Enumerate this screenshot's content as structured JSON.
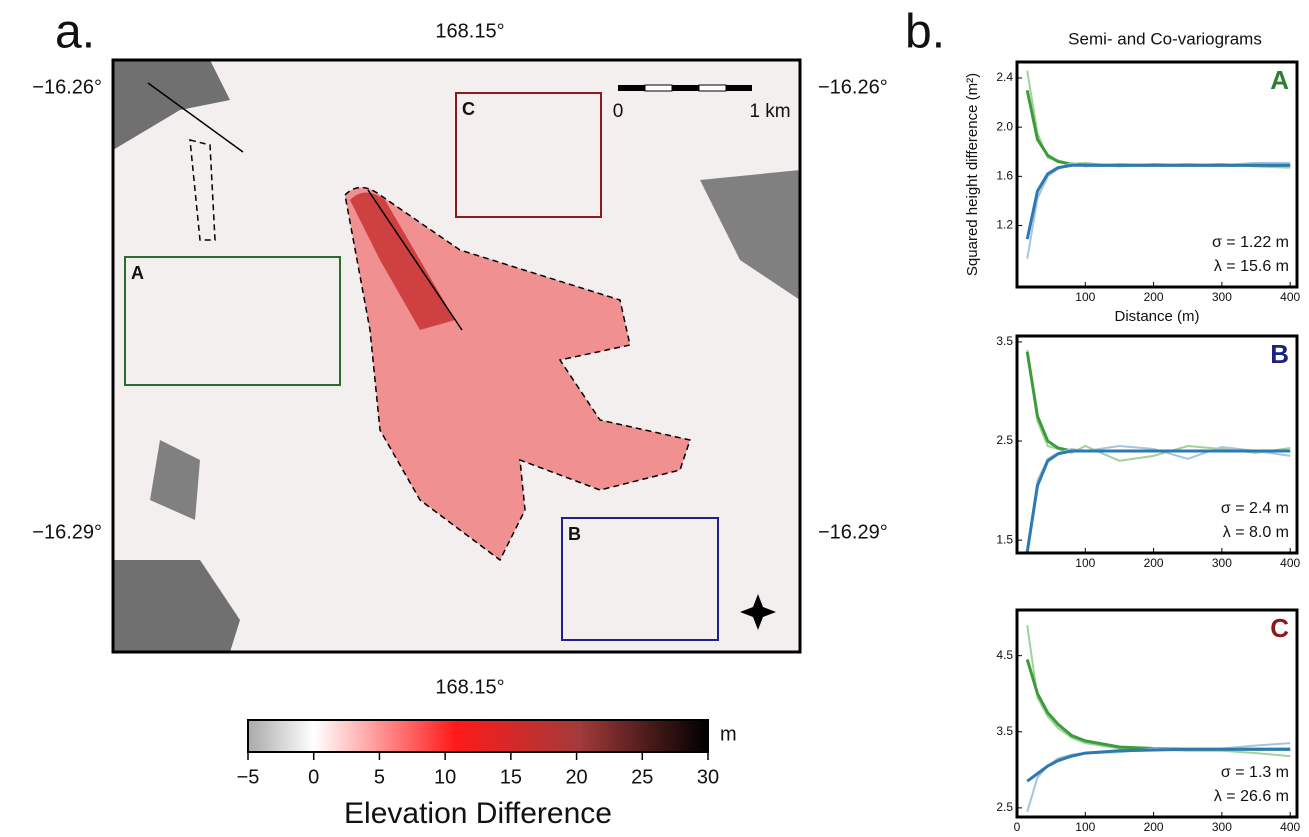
{
  "panel_labels": [
    "a.",
    "b."
  ],
  "map": {
    "lon_label": "168.15°",
    "lat_labels": [
      "−16.26°",
      "−16.29°"
    ],
    "boxes": [
      {
        "label": "A",
        "color": "#2e6b30"
      },
      {
        "label": "B",
        "color": "#23208a"
      },
      {
        "label": "C",
        "color": "#8b1a1a"
      }
    ],
    "scale_bar": [
      "0",
      "1 km"
    ],
    "colorbar": {
      "lim": [
        -5,
        30
      ],
      "ticks": [
        {
          "value": -5,
          "label": "−5"
        },
        0,
        5,
        10,
        15,
        20,
        25,
        30
      ],
      "unit": "m",
      "label": "Elevation Difference"
    }
  },
  "variogram_title": "Semi- and Co-variograms",
  "chart_data": [
    {
      "type": "line",
      "title": "A",
      "title_color": "#2e7d32",
      "ylabel": "Squared height difference (m²)",
      "xlabel": "Distance (m)",
      "x": [
        15,
        30,
        45,
        60,
        80,
        100,
        150,
        200,
        250,
        300,
        350,
        400
      ],
      "series": [
        {
          "color": "#9fd39a",
          "values": [
            2.46,
            1.95,
            1.75,
            1.73,
            1.7,
            1.71,
            1.68,
            1.7,
            1.69,
            1.7,
            1.68,
            1.67
          ]
        },
        {
          "color": "#3c9c3c",
          "values": [
            2.3,
            1.9,
            1.77,
            1.72,
            1.7,
            1.69,
            1.69,
            1.69,
            1.69,
            1.69,
            1.69,
            1.69
          ]
        },
        {
          "color": "#a3c6de",
          "values": [
            0.93,
            1.42,
            1.6,
            1.66,
            1.71,
            1.68,
            1.7,
            1.69,
            1.7,
            1.69,
            1.71,
            1.71
          ]
        },
        {
          "color": "#2f78b0",
          "values": [
            1.09,
            1.48,
            1.62,
            1.67,
            1.69,
            1.69,
            1.69,
            1.69,
            1.69,
            1.69,
            1.69,
            1.69
          ]
        }
      ],
      "xlim": [
        0,
        410
      ],
      "ylim": [
        0.7,
        2.53
      ],
      "xticks": [
        100,
        200,
        300,
        400
      ],
      "yticks": [
        1.2,
        1.6,
        {
          "value": 2,
          "label": "2.0"
        },
        2.4
      ],
      "annotations": [
        "σ = 1.22 m",
        "λ = 15.6 m"
      ]
    },
    {
      "type": "line",
      "title": "B",
      "title_color": "#1a237e",
      "x": [
        15,
        30,
        45,
        60,
        80,
        100,
        150,
        200,
        250,
        300,
        350,
        400
      ],
      "series": [
        {
          "color": "#9fd39a",
          "values": [
            3.42,
            2.7,
            2.45,
            2.42,
            2.38,
            2.45,
            2.3,
            2.35,
            2.45,
            2.42,
            2.38,
            2.43
          ]
        },
        {
          "color": "#3c9c3c",
          "values": [
            3.4,
            2.75,
            2.5,
            2.43,
            2.4,
            2.4,
            2.4,
            2.4,
            2.4,
            2.4,
            2.4,
            2.4
          ]
        },
        {
          "color": "#a3c6de",
          "values": [
            1.4,
            2.1,
            2.32,
            2.38,
            2.42,
            2.4,
            2.45,
            2.42,
            2.32,
            2.44,
            2.4,
            2.35
          ]
        },
        {
          "color": "#2f78b0",
          "values": [
            1.38,
            2.05,
            2.3,
            2.37,
            2.4,
            2.4,
            2.4,
            2.4,
            2.4,
            2.4,
            2.4,
            2.4
          ]
        }
      ],
      "xlim": [
        0,
        410
      ],
      "ylim": [
        1.37,
        3.56
      ],
      "xticks": [
        100,
        200,
        300,
        400
      ],
      "yticks": [
        1.5,
        2.5,
        3.5
      ],
      "annotations": [
        "σ = 2.4 m",
        "λ = 8.0 m"
      ]
    },
    {
      "type": "line",
      "title": "C",
      "title_color": "#8b1a1a",
      "x": [
        15,
        30,
        45,
        60,
        80,
        100,
        150,
        200,
        250,
        300,
        350,
        400
      ],
      "series": [
        {
          "color": "#9fd39a",
          "values": [
            4.9,
            3.95,
            3.7,
            3.55,
            3.42,
            3.35,
            3.28,
            3.27,
            3.25,
            3.25,
            3.22,
            3.18
          ]
        },
        {
          "color": "#3c9c3c",
          "values": [
            4.45,
            4.0,
            3.75,
            3.6,
            3.45,
            3.38,
            3.3,
            3.28,
            3.27,
            3.27,
            3.27,
            3.27
          ]
        },
        {
          "color": "#a3c6de",
          "values": [
            2.45,
            2.9,
            3.05,
            3.15,
            3.2,
            3.22,
            3.23,
            3.28,
            3.27,
            3.28,
            3.32,
            3.35
          ]
        },
        {
          "color": "#2f78b0",
          "values": [
            2.85,
            2.95,
            3.05,
            3.12,
            3.18,
            3.22,
            3.25,
            3.26,
            3.27,
            3.27,
            3.27,
            3.27
          ]
        }
      ],
      "xlim": [
        0,
        410
      ],
      "ylim": [
        2.38,
        5.1
      ],
      "xticks": [
        0,
        100,
        200,
        300,
        400
      ],
      "yticks": [
        2.5,
        3.5,
        4.5
      ],
      "annotations": [
        "σ = 1.3 m",
        "λ = 26.6 m"
      ]
    }
  ]
}
